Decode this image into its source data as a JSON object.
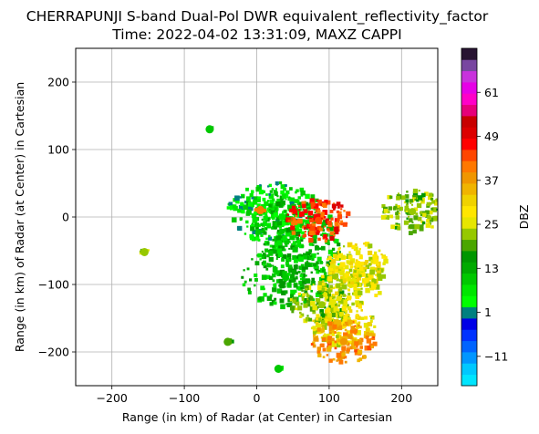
{
  "chart_data": {
    "type": "heatmap",
    "title": "CHERRAPUNJI S-band Dual-Pol DWR equivalent_reflectivity_factor",
    "subtitle": "Time: 2022-04-02 13:31:09, MAXZ CAPPI",
    "xlabel": "Range (in km) of Radar (at Center) in Cartesian",
    "ylabel": "Range (in km) of Radar (at Center) in Cartesian",
    "xlim": [
      -250,
      250
    ],
    "ylim": [
      -250,
      250
    ],
    "xticks": [
      -200,
      -100,
      0,
      100,
      200
    ],
    "yticks": [
      -200,
      -100,
      0,
      100,
      200
    ],
    "grid": true,
    "colorbar": {
      "label": "DBZ",
      "range": [
        -19,
        73
      ],
      "ticks": [
        -11,
        1,
        13,
        25,
        37,
        49,
        61
      ],
      "tick_labels": [
        "−11",
        "1",
        "13",
        "25",
        "37",
        "49",
        "61"
      ],
      "colors": [
        "#00e5ff",
        "#00c8ff",
        "#0096ff",
        "#0064ff",
        "#0032ff",
        "#0000e6",
        "#008080",
        "#00ff00",
        "#00e600",
        "#00c800",
        "#00aa00",
        "#009600",
        "#4ba600",
        "#96c800",
        "#e6e600",
        "#ffe600",
        "#f0d200",
        "#f0b400",
        "#f09600",
        "#ff7800",
        "#ff4600",
        "#ff0000",
        "#dc0000",
        "#c80000",
        "#e6007a",
        "#ff00c8",
        "#e600e6",
        "#c832dc",
        "#7846a0",
        "#281432"
      ]
    },
    "echoes": [
      {
        "x": 20,
        "y": 10,
        "dbz": 5
      },
      {
        "x": 35,
        "y": 0,
        "dbz": 8
      },
      {
        "x": 50,
        "y": -20,
        "dbz": 10
      },
      {
        "x": 60,
        "y": -60,
        "dbz": 12
      },
      {
        "x": 40,
        "y": -90,
        "dbz": 11
      },
      {
        "x": 90,
        "y": -130,
        "dbz": 22
      },
      {
        "x": 130,
        "y": -100,
        "dbz": 26
      },
      {
        "x": 120,
        "y": -160,
        "dbz": 28
      },
      {
        "x": 140,
        "y": -70,
        "dbz": 27
      },
      {
        "x": 85,
        "y": -5,
        "dbz": 45
      },
      {
        "x": 5,
        "y": 10,
        "dbz": 40
      },
      {
        "x": 120,
        "y": -185,
        "dbz": 38
      },
      {
        "x": -65,
        "y": 130,
        "dbz": 10
      },
      {
        "x": 215,
        "y": 8,
        "dbz": 22
      },
      {
        "x": -155,
        "y": -52,
        "dbz": 22
      },
      {
        "x": 30,
        "y": -225,
        "dbz": 9
      },
      {
        "x": -40,
        "y": -185,
        "dbz": 20
      }
    ]
  }
}
